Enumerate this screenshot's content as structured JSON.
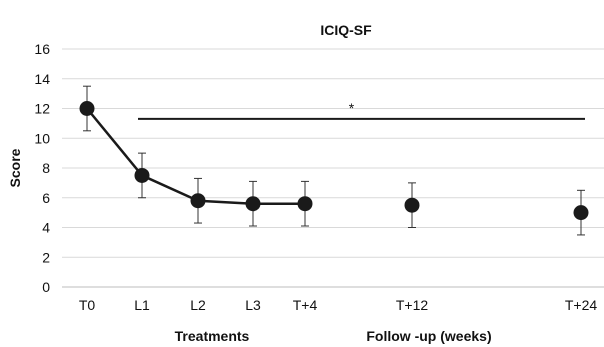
{
  "chart_data": {
    "type": "line",
    "title": "ICIQ-SF",
    "ylabel": "Score",
    "ylim": [
      0,
      16
    ],
    "yticks": [
      0,
      2,
      4,
      6,
      8,
      10,
      12,
      14,
      16
    ],
    "grid": true,
    "legend": "none",
    "categories": [
      "T0",
      "L1",
      "L2",
      "L3",
      "T+4",
      "T+12",
      "T+24"
    ],
    "groups": [
      {
        "label": "Treatments"
      },
      {
        "label": "Follow -up (weeks)"
      }
    ],
    "series": [
      {
        "values": [
          12.0,
          7.5,
          5.8,
          5.6,
          5.6,
          5.5,
          5.0
        ],
        "error": [
          1.5,
          1.5,
          1.5,
          1.5,
          1.5,
          1.5,
          1.5
        ],
        "connected": [
          true,
          true,
          true,
          true,
          true,
          false,
          false
        ]
      }
    ],
    "annotation": {
      "text": "*",
      "y": 11.3,
      "from": "L1",
      "to": "T+24"
    },
    "colors": {
      "marker": "#1a1a1a",
      "line": "#1a1a1a",
      "grid": "#d9d9d9"
    }
  }
}
